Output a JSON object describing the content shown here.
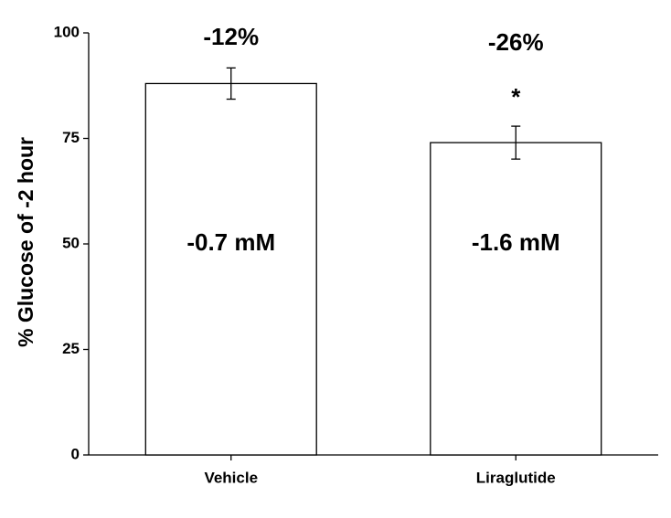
{
  "chart_data": {
    "type": "bar",
    "y_label": "% Glucose of -2 hour",
    "categories": [
      "Vehicle",
      "Liraglutide"
    ],
    "values": [
      88,
      74
    ],
    "errors": [
      3.7,
      3.9
    ],
    "change_labels": [
      "-12%",
      "-26%"
    ],
    "significance": [
      null,
      "*"
    ],
    "inside_labels": [
      "-0.7 mM",
      "-1.6 mM"
    ],
    "color": "#ffffff",
    "ylim": [
      0,
      100
    ],
    "yticks": [
      0,
      25,
      50,
      75,
      100
    ],
    "grid": false
  }
}
